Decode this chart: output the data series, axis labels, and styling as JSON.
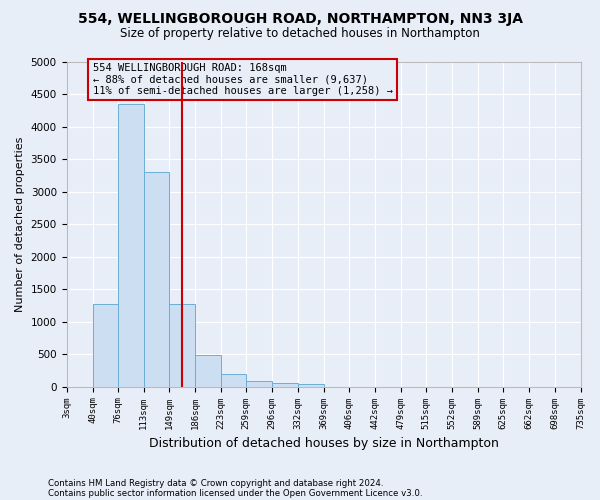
{
  "title": "554, WELLINGBOROUGH ROAD, NORTHAMPTON, NN3 3JA",
  "subtitle": "Size of property relative to detached houses in Northampton",
  "xlabel": "Distribution of detached houses by size in Northampton",
  "ylabel": "Number of detached properties",
  "bar_color": "#ccdff2",
  "bar_edge_color": "#6baed6",
  "vline_x": 168,
  "vline_color": "#cc0000",
  "annotation_line1": "554 WELLINGBOROUGH ROAD: 168sqm",
  "annotation_line2": "← 88% of detached houses are smaller (9,637)",
  "annotation_line3": "11% of semi-detached houses are larger (1,258) →",
  "annotation_box_color": "#cc0000",
  "footnote1": "Contains HM Land Registry data © Crown copyright and database right 2024.",
  "footnote2": "Contains public sector information licensed under the Open Government Licence v3.0.",
  "bin_edges": [
    3,
    40,
    76,
    113,
    149,
    186,
    223,
    259,
    296,
    332,
    369,
    406,
    442,
    479,
    515,
    552,
    589,
    625,
    662,
    698,
    735
  ],
  "bar_heights": [
    0,
    1270,
    4350,
    3300,
    1270,
    480,
    200,
    80,
    50,
    40,
    0,
    0,
    0,
    0,
    0,
    0,
    0,
    0,
    0,
    0
  ],
  "ylim": [
    0,
    5000
  ],
  "yticks": [
    0,
    500,
    1000,
    1500,
    2000,
    2500,
    3000,
    3500,
    4000,
    4500,
    5000
  ],
  "background_color": "#e8eef8",
  "axes_background": "#e8eef8",
  "grid_color": "#ffffff"
}
